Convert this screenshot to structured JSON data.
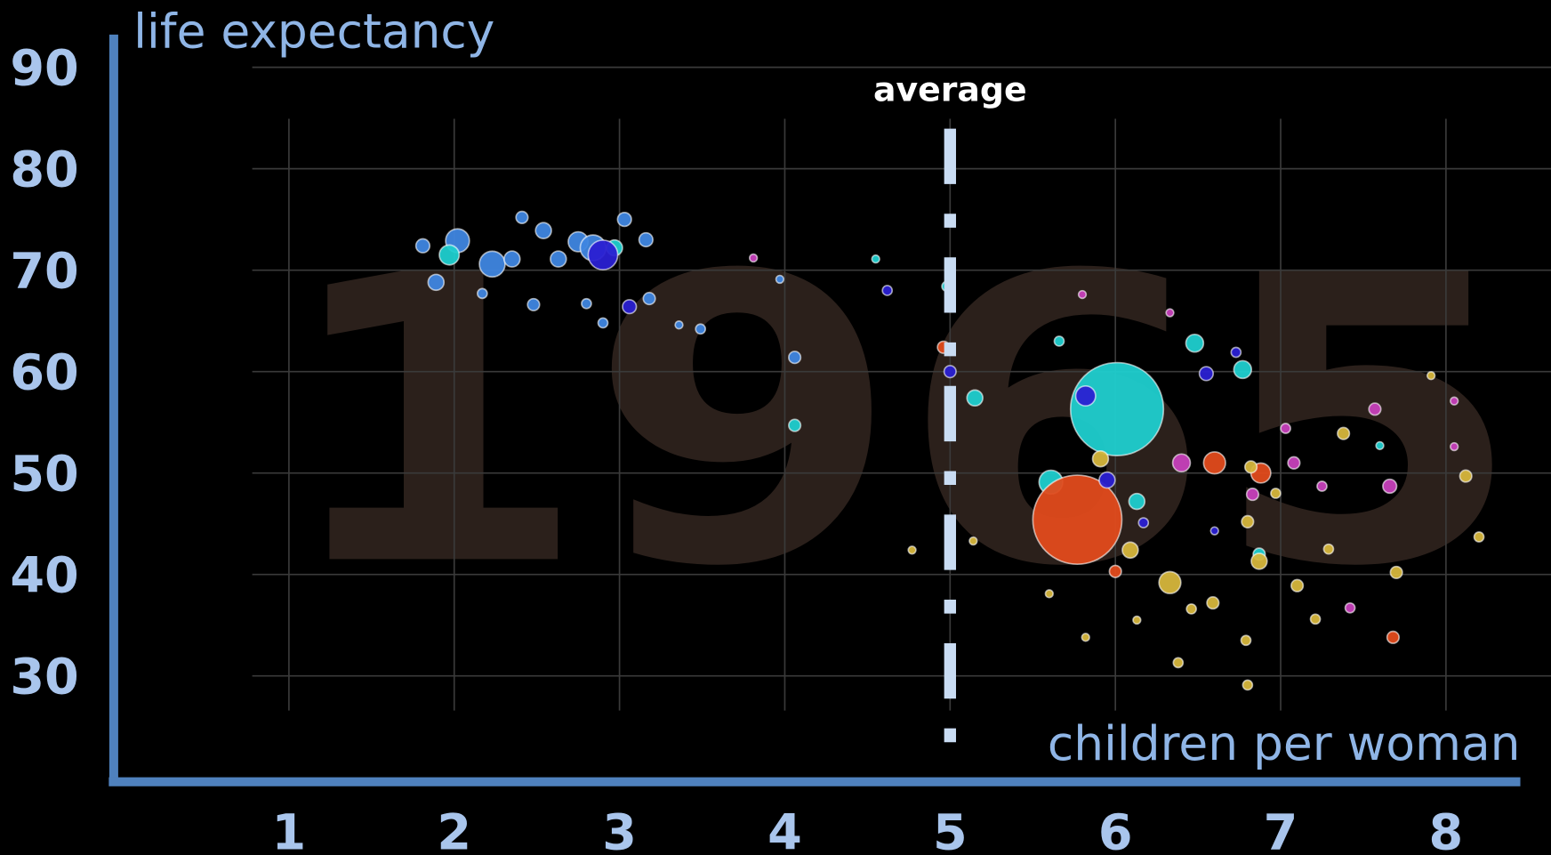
{
  "chart_data": {
    "type": "scatter",
    "year": "1965",
    "xlabel": "children per woman",
    "ylabel": "life expectancy",
    "average": {
      "text": "average",
      "x": 5
    },
    "xlim": [
      0,
      8.5
    ],
    "ylim": [
      20,
      90
    ],
    "xticks": [
      1,
      2,
      3,
      4,
      5,
      6,
      7,
      8
    ],
    "yticks": [
      30,
      40,
      50,
      60,
      70,
      80,
      90
    ],
    "grid": true,
    "series": [
      {
        "color": "#3f86e0",
        "x": [
          1.81,
          2.02,
          2.23,
          2.41,
          2.54,
          2.75,
          2.84,
          3.03,
          3.16,
          1.89,
          2.17,
          2.48,
          2.8,
          2.9,
          3.18,
          3.36,
          3.49,
          4.06,
          3.97,
          2.35,
          2.63
        ],
        "values": [
          72.4,
          72.9,
          70.6,
          75.2,
          73.9,
          72.8,
          72.2,
          75.0,
          73.0,
          68.8,
          67.7,
          66.6,
          66.7,
          64.8,
          67.2,
          64.6,
          64.2,
          61.4,
          69.1,
          71.1,
          71.1
        ],
        "sizes": [
          16,
          47,
          55,
          12,
          21,
          33,
          55,
          16,
          16,
          21,
          8,
          12,
          8,
          8,
          12,
          5,
          8,
          12,
          5,
          21,
          21
        ]
      },
      {
        "color": "#1fcfcf",
        "x": [
          6.01,
          1.97,
          2.97,
          4.06,
          4.55,
          4.98,
          5.15,
          5.61,
          6.13,
          6.48,
          6.77,
          6.87,
          5.66,
          7.6
        ],
        "values": [
          56.3,
          71.5,
          72.2,
          54.7,
          71.1,
          68.4,
          57.4,
          49.1,
          47.2,
          62.8,
          60.2,
          42.0,
          63.0,
          52.7
        ],
        "sizes": [
          721,
          33,
          21,
          12,
          5,
          8,
          21,
          47,
          21,
          26,
          26,
          12,
          8,
          5
        ]
      },
      {
        "color": "#e24b1c",
        "x": [
          5.77,
          4.96,
          6.6,
          6.88,
          6.0,
          7.68
        ],
        "values": [
          45.4,
          62.4,
          51.0,
          50.0,
          40.3,
          33.8
        ],
        "sizes": [
          661,
          12,
          40,
          33,
          12,
          12
        ]
      },
      {
        "color": "#2a20d2",
        "x": [
          2.9,
          3.06,
          5.82,
          5.0,
          5.95,
          6.55,
          6.17,
          6.73,
          6.6,
          4.62
        ],
        "values": [
          71.5,
          66.4,
          57.6,
          60.0,
          49.3,
          59.8,
          45.1,
          61.9,
          44.3,
          68.0
        ],
        "sizes": [
          73,
          16,
          33,
          12,
          21,
          16,
          8,
          8,
          5,
          8
        ]
      },
      {
        "color": "#c640ba",
        "x": [
          6.4,
          6.83,
          7.08,
          7.03,
          7.66,
          7.57,
          5.8,
          3.81,
          7.42,
          7.25,
          6.33,
          8.05,
          8.05
        ],
        "values": [
          51.0,
          47.9,
          51.0,
          54.4,
          48.7,
          56.3,
          67.6,
          71.2,
          36.7,
          48.7,
          65.8,
          57.1,
          52.6
        ],
        "sizes": [
          26,
          12,
          12,
          8,
          16,
          12,
          5,
          5,
          8,
          8,
          5,
          5,
          5
        ]
      },
      {
        "color": "#d6b63c",
        "x": [
          5.91,
          6.33,
          6.09,
          6.87,
          6.8,
          6.97,
          6.59,
          7.1,
          7.21,
          7.38,
          7.7,
          8.12,
          8.2,
          6.38,
          6.8,
          6.79,
          6.13,
          5.82,
          5.6,
          4.77,
          7.29,
          6.82,
          5.14,
          6.46,
          7.91
        ],
        "values": [
          51.4,
          39.2,
          42.4,
          41.3,
          45.2,
          48.0,
          37.2,
          38.9,
          35.6,
          53.9,
          40.2,
          49.7,
          43.7,
          31.3,
          29.1,
          33.5,
          35.5,
          33.8,
          38.1,
          42.4,
          42.5,
          50.6,
          43.3,
          36.6,
          59.6
        ],
        "sizes": [
          21,
          40,
          21,
          21,
          12,
          8,
          12,
          12,
          8,
          12,
          12,
          12,
          8,
          8,
          8,
          8,
          5,
          5,
          5,
          5,
          8,
          12,
          5,
          8,
          5
        ]
      }
    ]
  }
}
